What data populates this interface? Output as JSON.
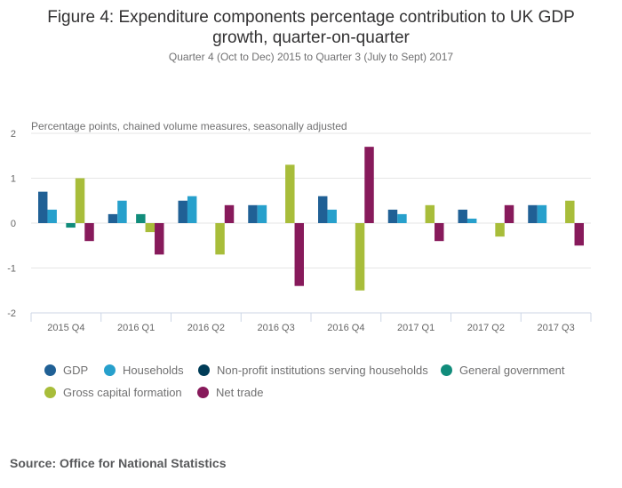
{
  "chart_data": {
    "type": "bar",
    "title": "Figure 4: Expenditure components percentage contribution to UK GDP growth, quarter-on-quarter",
    "title_lines": [
      "Figure 4: Expenditure components percentage contribution to UK GDP",
      "growth, quarter-on-quarter"
    ],
    "subtitle": "Quarter 4 (Oct to Dec) 2015 to Quarter 3 (July to Sept) 2017",
    "ylabel": "Percentage points, chained volume measures, seasonally adjusted",
    "xlabel": "",
    "ylim": [
      -2,
      2
    ],
    "yticks": [
      2,
      1,
      0,
      -1,
      -2
    ],
    "ytick_labels": [
      "2",
      "1",
      "0",
      "-1",
      "-2"
    ],
    "grid": true,
    "legend_position": "bottom",
    "categories": [
      "2015 Q4",
      "2016 Q1",
      "2016 Q2",
      "2016 Q3",
      "2016 Q4",
      "2017 Q1",
      "2017 Q2",
      "2017 Q3"
    ],
    "series": [
      {
        "name": "GDP",
        "color": "#206095",
        "values": [
          0.7,
          0.2,
          0.5,
          0.4,
          0.6,
          0.3,
          0.3,
          0.4
        ]
      },
      {
        "name": "Households",
        "color": "#27A0CC",
        "values": [
          0.3,
          0.5,
          0.6,
          0.4,
          0.3,
          0.2,
          0.1,
          0.4
        ]
      },
      {
        "name": "Non-profit institutions serving households",
        "color": "#003C57",
        "values": [
          0.0,
          0.0,
          0.0,
          0.0,
          0.0,
          0.0,
          0.0,
          0.0
        ]
      },
      {
        "name": "General government",
        "color": "#118C7B",
        "values": [
          -0.1,
          0.2,
          0.0,
          0.0,
          0.0,
          0.0,
          0.0,
          0.0
        ]
      },
      {
        "name": "Gross capital formation",
        "color": "#A8BD3A",
        "values": [
          1.0,
          -0.2,
          -0.7,
          1.3,
          -1.5,
          0.4,
          -0.3,
          0.5
        ]
      },
      {
        "name": "Net trade",
        "color": "#871A5B",
        "values": [
          -0.4,
          -0.7,
          0.4,
          -1.4,
          1.7,
          -0.4,
          0.4,
          -0.5
        ]
      }
    ]
  },
  "source": "Source: Office for National Statistics"
}
